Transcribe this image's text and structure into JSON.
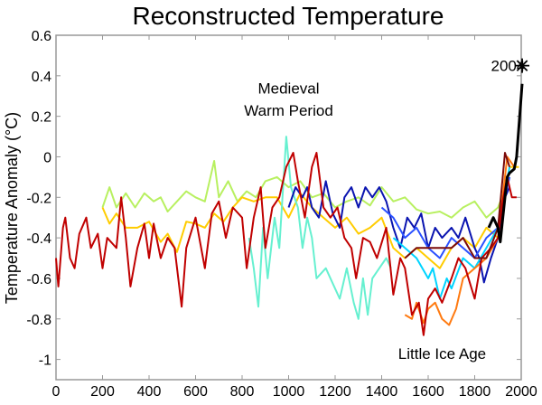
{
  "chart_data": {
    "type": "line",
    "title": "Reconstructed Temperature",
    "xlabel": "",
    "ylabel": "Temperature Anomaly (°C)",
    "xlim": [
      0,
      2000
    ],
    "ylim": [
      -1.1,
      0.6
    ],
    "xticks": [
      0,
      200,
      400,
      600,
      800,
      1000,
      1200,
      1400,
      1600,
      1800,
      2000
    ],
    "yticks": [
      0.6,
      0.4,
      0.2,
      0,
      -0.2,
      -0.4,
      -0.6,
      -0.8,
      -1
    ],
    "ytick_labels": [
      "0.6",
      "0.4",
      "0.2",
      "0",
      "-0.2",
      "-0.4",
      "-0.6",
      "-0.8",
      "-1"
    ],
    "grid": false,
    "annotations": [
      {
        "text": "Medieval",
        "x": 1000,
        "y": 0.34
      },
      {
        "text": "Warm Period",
        "x": 1000,
        "y": 0.23
      },
      {
        "text": "Little Ice Age",
        "x": 1660,
        "y": -0.97
      },
      {
        "text": "2004",
        "x": 1870,
        "y": 0.45
      }
    ],
    "marker": {
      "x": 2004,
      "y": 0.45,
      "symbol": "asterisk"
    },
    "series": [
      {
        "color": "#b8f060",
        "x": [
          200,
          230,
          260,
          300,
          340,
          380,
          420,
          450,
          480,
          520,
          560,
          600,
          640,
          680,
          700,
          740,
          780,
          820,
          860,
          900,
          950,
          1000,
          1050,
          1100,
          1150,
          1200,
          1250,
          1300,
          1350,
          1400,
          1450,
          1500,
          1550,
          1600,
          1650,
          1700,
          1750,
          1800,
          1850,
          1900,
          1950
        ],
        "y": [
          -0.25,
          -0.15,
          -0.25,
          -0.18,
          -0.25,
          -0.18,
          -0.22,
          -0.2,
          -0.27,
          -0.22,
          -0.17,
          -0.2,
          -0.22,
          -0.02,
          -0.2,
          -0.12,
          -0.22,
          -0.17,
          -0.2,
          -0.12,
          -0.1,
          -0.15,
          -0.12,
          -0.2,
          -0.18,
          -0.25,
          -0.22,
          -0.2,
          -0.24,
          -0.15,
          -0.22,
          -0.2,
          -0.26,
          -0.28,
          -0.27,
          -0.3,
          -0.25,
          -0.22,
          -0.3,
          -0.25,
          -0.1
        ]
      },
      {
        "color": "#ffcc00",
        "x": [
          200,
          230,
          260,
          300,
          350,
          400,
          450,
          480,
          520,
          560,
          600,
          640,
          680,
          720,
          760,
          800,
          850,
          900,
          950,
          1000,
          1050,
          1100,
          1150,
          1200,
          1250,
          1300,
          1350,
          1400,
          1450,
          1500,
          1550,
          1600,
          1650,
          1700,
          1750,
          1800,
          1850,
          1900,
          1950,
          1990
        ],
        "y": [
          -0.25,
          -0.33,
          -0.28,
          -0.35,
          -0.35,
          -0.32,
          -0.42,
          -0.38,
          -0.47,
          -0.32,
          -0.33,
          -0.35,
          -0.28,
          -0.32,
          -0.25,
          -0.2,
          -0.22,
          -0.2,
          -0.2,
          -0.3,
          -0.18,
          -0.25,
          -0.3,
          -0.35,
          -0.3,
          -0.38,
          -0.35,
          -0.3,
          -0.45,
          -0.5,
          -0.45,
          -0.5,
          -0.55,
          -0.45,
          -0.4,
          -0.45,
          -0.35,
          -0.4,
          -0.05,
          -0.05
        ]
      },
      {
        "color": "#66f0d0",
        "x": [
          830,
          850,
          870,
          890,
          910,
          940,
          960,
          990,
          1010,
          1040,
          1060,
          1080,
          1100,
          1120,
          1160,
          1180,
          1220,
          1250,
          1280,
          1300,
          1320,
          1340,
          1360,
          1390,
          1420,
          1440
        ],
        "y": [
          -0.4,
          -0.55,
          -0.74,
          -0.35,
          -0.6,
          -0.3,
          -0.45,
          0.1,
          -0.15,
          -0.25,
          -0.45,
          -0.3,
          -0.4,
          -0.6,
          -0.55,
          -0.6,
          -0.7,
          -0.55,
          -0.72,
          -0.8,
          -0.6,
          -0.78,
          -0.6,
          -0.55,
          -0.5,
          -0.55
        ]
      },
      {
        "color": "#0a14b0",
        "x": [
          1000,
          1030,
          1060,
          1080,
          1100,
          1130,
          1160,
          1190,
          1220,
          1240,
          1270,
          1300,
          1330,
          1360,
          1390,
          1420,
          1450,
          1480,
          1510,
          1540,
          1570,
          1600,
          1630,
          1660,
          1700,
          1730,
          1760,
          1800,
          1820,
          1840,
          1870,
          1900,
          1930,
          1950
        ],
        "y": [
          -0.25,
          -0.15,
          -0.2,
          -0.15,
          -0.25,
          -0.3,
          -0.12,
          -0.28,
          -0.35,
          -0.2,
          -0.15,
          -0.25,
          -0.15,
          -0.2,
          -0.15,
          -0.22,
          -0.35,
          -0.45,
          -0.3,
          -0.35,
          -0.28,
          -0.45,
          -0.35,
          -0.4,
          -0.35,
          -0.4,
          -0.3,
          -0.45,
          -0.5,
          -0.62,
          -0.5,
          -0.4,
          -0.2,
          -0.15
        ]
      },
      {
        "color": "#2a50ff",
        "x": [
          1400,
          1450,
          1500,
          1550,
          1600,
          1650,
          1700,
          1750,
          1800,
          1850,
          1900,
          1950
        ],
        "y": [
          -0.25,
          -0.3,
          -0.4,
          -0.35,
          -0.45,
          -0.5,
          -0.4,
          -0.45,
          -0.5,
          -0.4,
          -0.35,
          -0.1
        ]
      },
      {
        "color": "#00d4ff",
        "x": [
          1450,
          1500,
          1550,
          1600,
          1620,
          1650,
          1680,
          1700,
          1750,
          1800,
          1850,
          1900,
          1950
        ],
        "y": [
          -0.4,
          -0.45,
          -0.5,
          -0.6,
          -0.55,
          -0.7,
          -0.6,
          -0.65,
          -0.5,
          -0.55,
          -0.45,
          -0.35,
          -0.05
        ]
      },
      {
        "color": "#ff7a10",
        "x": [
          1500,
          1530,
          1550,
          1580,
          1600,
          1630,
          1660,
          1690,
          1720,
          1750,
          1800,
          1850,
          1900,
          1940,
          1970
        ],
        "y": [
          -0.78,
          -0.8,
          -0.72,
          -0.82,
          -0.75,
          -0.72,
          -0.8,
          -0.83,
          -0.75,
          -0.6,
          -0.55,
          -0.5,
          -0.4,
          0.0,
          -0.05
        ]
      },
      {
        "color": "#c00000",
        "x": [
          0,
          10,
          30,
          40,
          60,
          80,
          100,
          130,
          150,
          180,
          200,
          220,
          260,
          280,
          300,
          320,
          350,
          380,
          400,
          420,
          450,
          480,
          510,
          540,
          560,
          600,
          640,
          670,
          700,
          730,
          760,
          800,
          820,
          850,
          880,
          900,
          930,
          960,
          990,
          1020,
          1040,
          1070,
          1100,
          1120,
          1150,
          1180,
          1210,
          1240,
          1270,
          1290,
          1320,
          1350,
          1380,
          1420,
          1450,
          1480,
          1500,
          1530,
          1560,
          1580,
          1600,
          1630,
          1660,
          1700,
          1730,
          1760,
          1800,
          1830,
          1870,
          1900,
          1920,
          1940,
          1960,
          1980
        ],
        "y": [
          -0.5,
          -0.64,
          -0.35,
          -0.3,
          -0.5,
          -0.55,
          -0.38,
          -0.3,
          -0.45,
          -0.38,
          -0.55,
          -0.4,
          -0.45,
          -0.2,
          -0.4,
          -0.64,
          -0.45,
          -0.33,
          -0.5,
          -0.33,
          -0.5,
          -0.4,
          -0.45,
          -0.74,
          -0.45,
          -0.3,
          -0.55,
          -0.28,
          -0.22,
          -0.4,
          -0.25,
          -0.3,
          -0.55,
          -0.3,
          -0.15,
          -0.45,
          -0.25,
          -0.2,
          -0.05,
          0.02,
          -0.12,
          -0.3,
          -0.05,
          0.02,
          -0.25,
          -0.3,
          -0.25,
          -0.4,
          -0.45,
          -0.6,
          -0.4,
          -0.42,
          -0.5,
          -0.35,
          -0.68,
          -0.5,
          -0.55,
          -0.78,
          -0.72,
          -0.88,
          -0.7,
          -0.65,
          -0.72,
          -0.6,
          -0.5,
          -0.55,
          -0.7,
          -0.5,
          -0.45,
          -0.4,
          -0.22,
          -0.1,
          -0.2,
          -0.2
        ]
      },
      {
        "color": "#7a0a0a",
        "x": [
          1500,
          1550,
          1600,
          1650,
          1700,
          1750,
          1800,
          1850,
          1900,
          1930,
          1950
        ],
        "y": [
          -0.5,
          -0.45,
          -0.45,
          -0.45,
          -0.45,
          -0.4,
          -0.5,
          -0.5,
          -0.35,
          0.02,
          -0.05
        ]
      },
      {
        "color": "#000000",
        "x": [
          1860,
          1880,
          1900,
          1910,
          1930,
          1940,
          1950,
          1970,
          1980,
          2004
        ],
        "y": [
          -0.35,
          -0.3,
          -0.35,
          -0.42,
          -0.2,
          -0.1,
          -0.08,
          -0.06,
          0.0,
          0.36
        ]
      }
    ]
  }
}
